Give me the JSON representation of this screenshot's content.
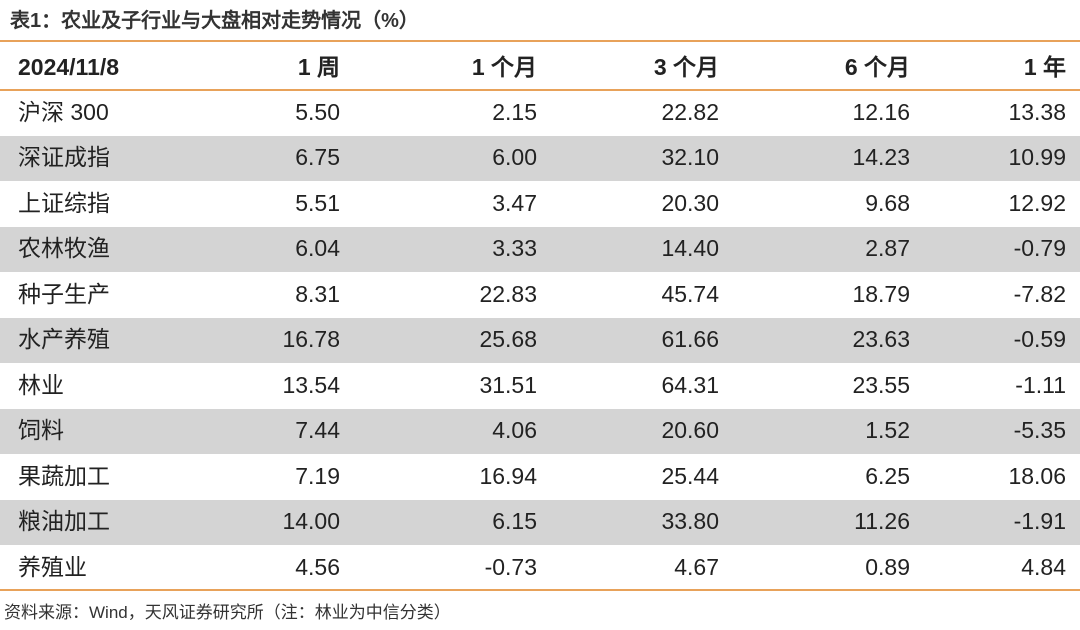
{
  "title": "表1：农业及子行业与大盘相对走势情况（%）",
  "table": {
    "header": [
      "2024/11/8",
      "1 周",
      "1 个月",
      "3 个月",
      "6 个月",
      "1 年"
    ],
    "rows": [
      [
        "沪深 300",
        "5.50",
        "2.15",
        "22.82",
        "12.16",
        "13.38"
      ],
      [
        "深证成指",
        "6.75",
        "6.00",
        "32.10",
        "14.23",
        "10.99"
      ],
      [
        "上证综指",
        "5.51",
        "3.47",
        "20.30",
        "9.68",
        "12.92"
      ],
      [
        "农林牧渔",
        "6.04",
        "3.33",
        "14.40",
        "2.87",
        "-0.79"
      ],
      [
        "种子生产",
        "8.31",
        "22.83",
        "45.74",
        "18.79",
        "-7.82"
      ],
      [
        "水产养殖",
        "16.78",
        "25.68",
        "61.66",
        "23.63",
        "-0.59"
      ],
      [
        "林业",
        "13.54",
        "31.51",
        "64.31",
        "23.55",
        "-1.11"
      ],
      [
        "饲料",
        "7.44",
        "4.06",
        "20.60",
        "1.52",
        "-5.35"
      ],
      [
        "果蔬加工",
        "7.19",
        "16.94",
        "25.44",
        "6.25",
        "18.06"
      ],
      [
        "粮油加工",
        "14.00",
        "6.15",
        "33.80",
        "11.26",
        "-1.91"
      ],
      [
        "养殖业",
        "4.56",
        "-0.73",
        "4.67",
        "0.89",
        "4.84"
      ]
    ]
  },
  "source": "资料来源：Wind，天风证券研究所（注：林业为中信分类）"
}
